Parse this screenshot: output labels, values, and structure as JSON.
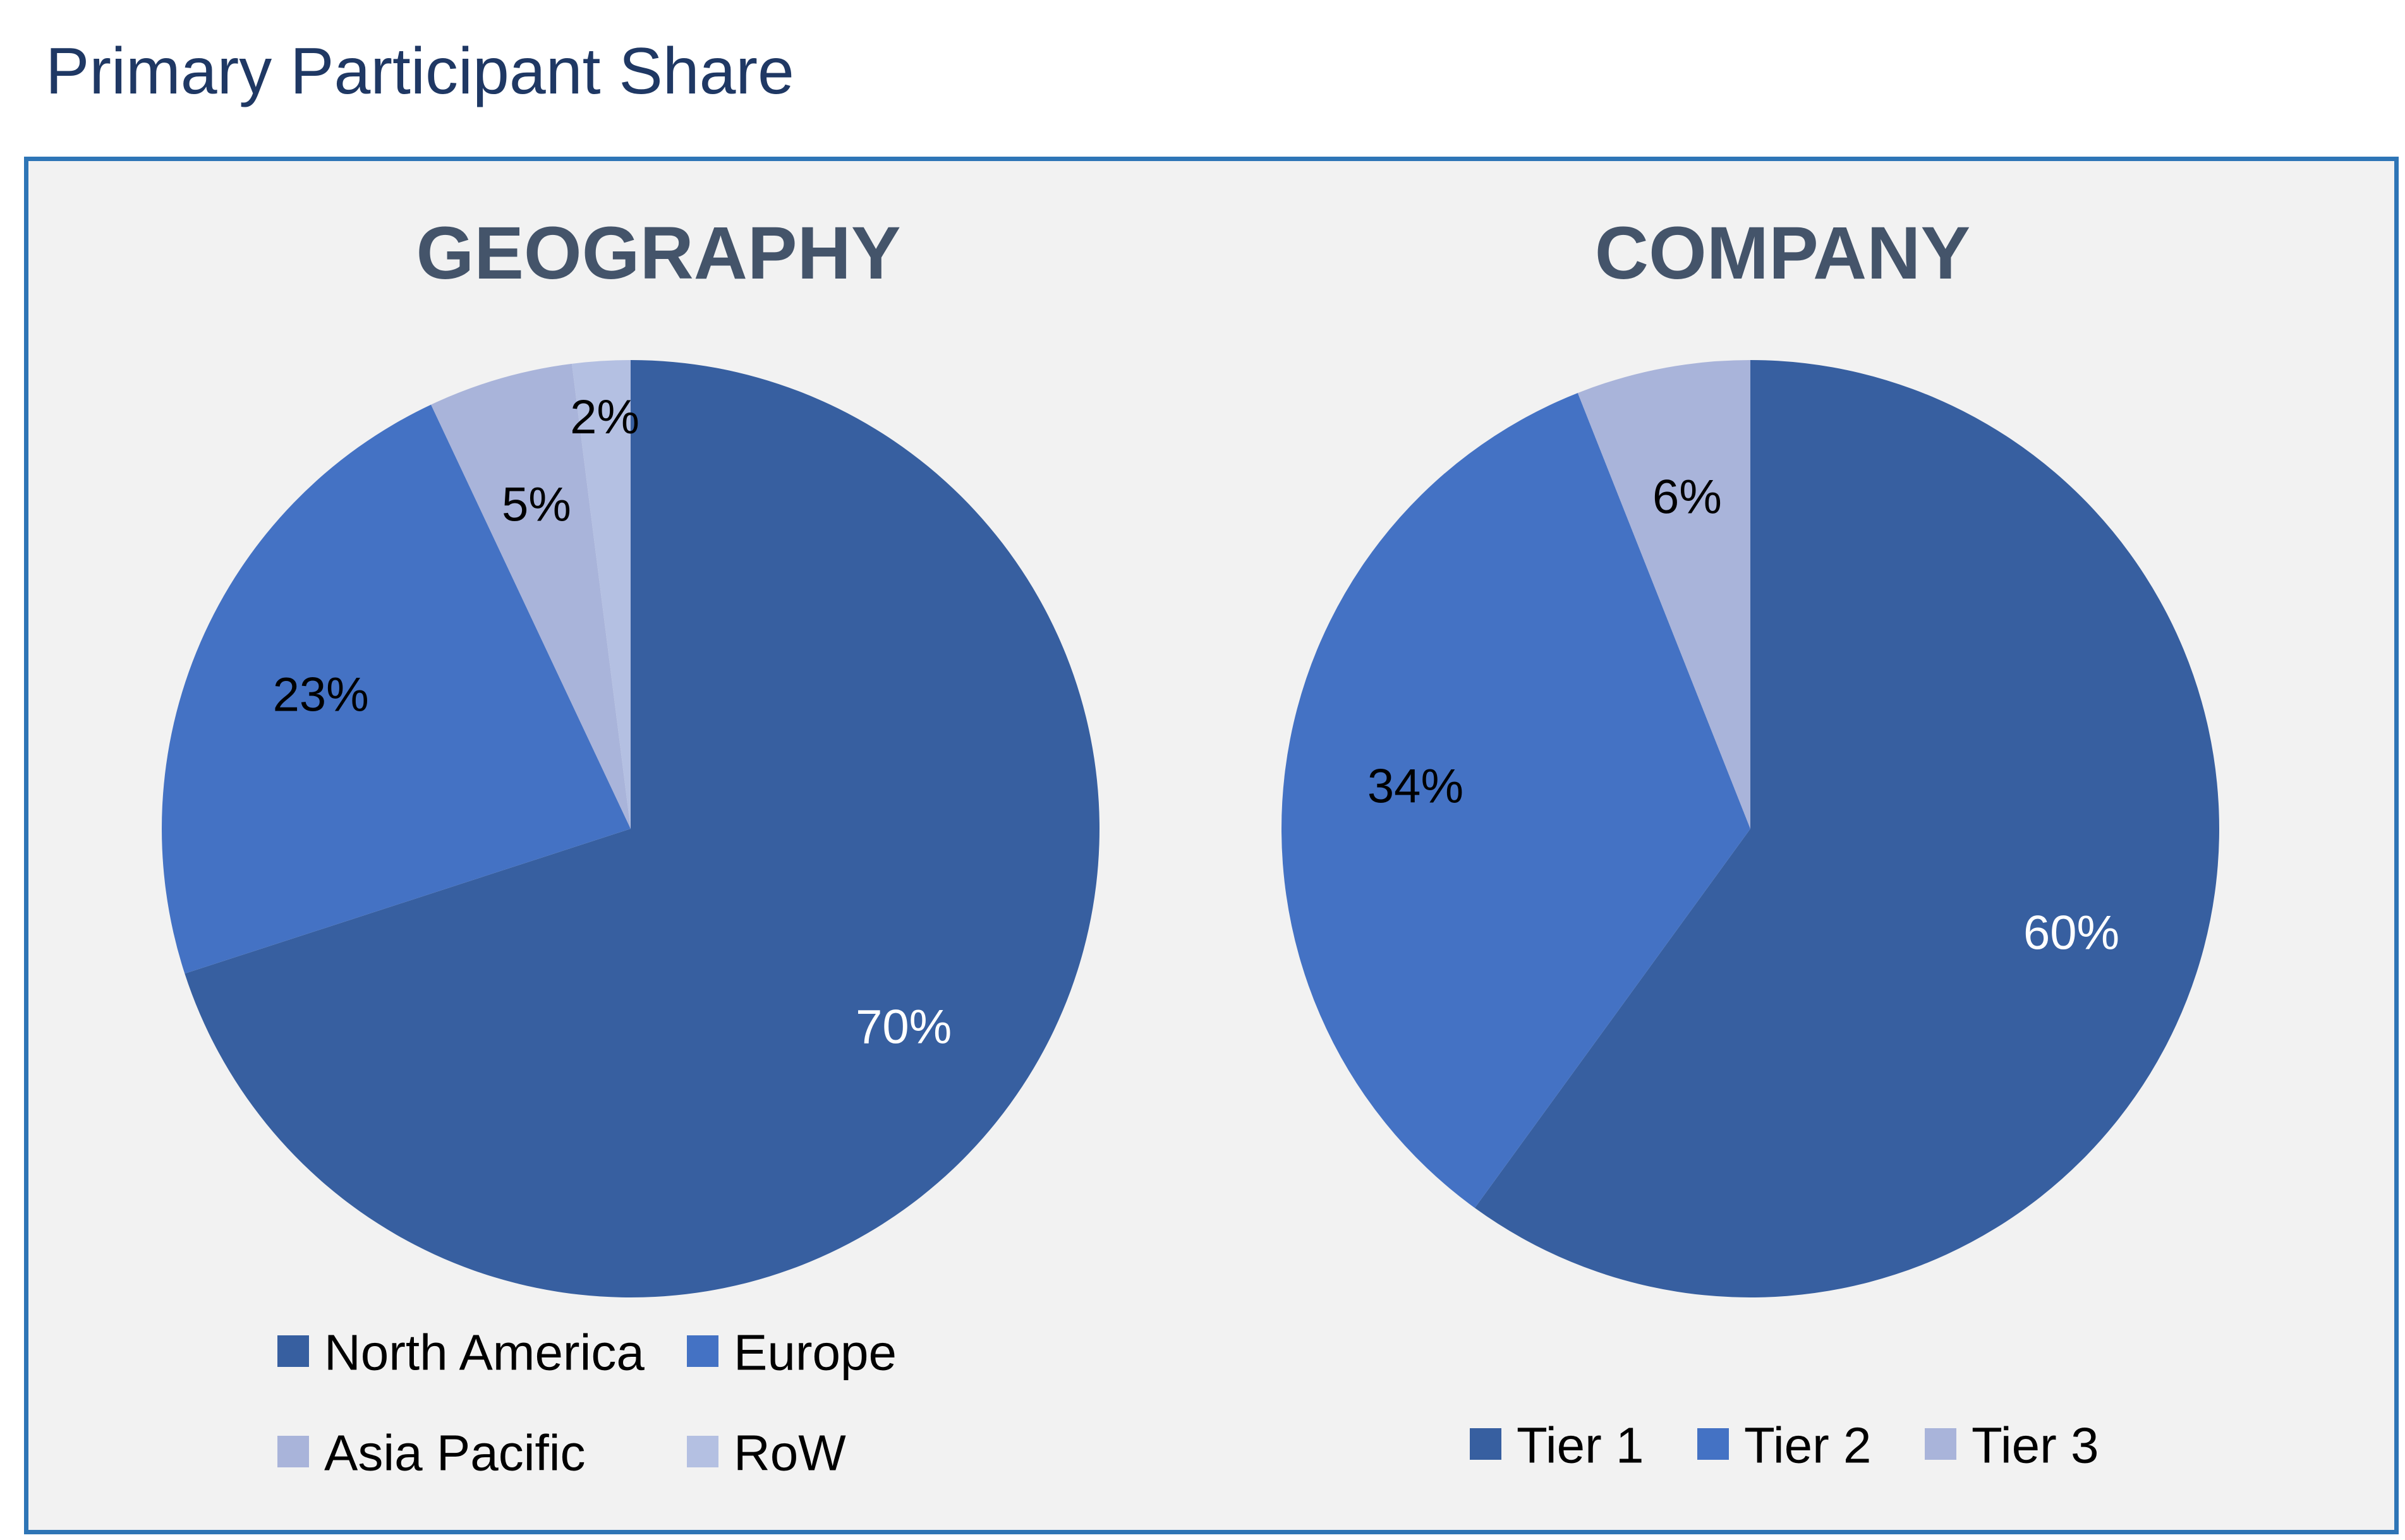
{
  "page_title": "Primary Participant Share",
  "colors": {
    "frame_border": "#2e75b6",
    "frame_background": "#f2f2f2",
    "title_color": "#1f3864",
    "panel_title_color": "#44546a"
  },
  "chart_data": [
    {
      "type": "pie",
      "title": "GEOGRAPHY",
      "categories": [
        "North America",
        "Europe",
        "Asia Pacific",
        "RoW"
      ],
      "values": [
        70,
        23,
        5,
        2
      ],
      "labels": [
        "70%",
        "23%",
        "5%",
        "2%"
      ],
      "colors": [
        "#375fa0",
        "#4472c4",
        "#a9b4da",
        "#b4c0e2"
      ],
      "label_colors": [
        "#ffffff",
        "#000000",
        "#000000",
        "#000000"
      ],
      "start_angle_deg": 0,
      "direction": "clockwise",
      "legend_position": "bottom"
    },
    {
      "type": "pie",
      "title": "COMPANY",
      "categories": [
        "Tier 1",
        "Tier 2",
        "Tier 3"
      ],
      "values": [
        60,
        34,
        6
      ],
      "labels": [
        "60%",
        "34%",
        "6%"
      ],
      "colors": [
        "#375fa0",
        "#4472c4",
        "#a9b4da"
      ],
      "label_colors": [
        "#ffffff",
        "#000000",
        "#000000"
      ],
      "start_angle_deg": 0,
      "direction": "clockwise",
      "legend_position": "bottom"
    }
  ]
}
